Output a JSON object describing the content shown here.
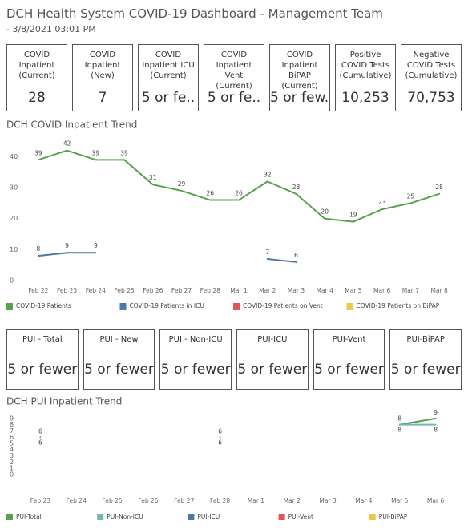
{
  "header": {
    "title": "DCH Health System COVID-19 Dashboard - Management Team",
    "subtitle": "- 3/8/2021 03:01 PM"
  },
  "kpis": [
    {
      "title": "COVID Inpatient (Current)",
      "value": "28"
    },
    {
      "title": "COVID Inpatient (New)",
      "value": "7"
    },
    {
      "title": "COVID Inpatient ICU (Current)",
      "value": "5 or fe.."
    },
    {
      "title": "COVID Inpatient Vent (Current)",
      "value": "5 or fe.."
    },
    {
      "title": "COVID Inpatient BiPAP (Current)",
      "value": "5 or few.."
    },
    {
      "title": "Positive COVID Tests (Cumulative)",
      "value": "10,253"
    },
    {
      "title": "Negative COVID Tests (Cumulative)",
      "value": "70,753"
    }
  ],
  "pui_kpis": [
    {
      "title": "PUI - Total",
      "value": "5 or fewer"
    },
    {
      "title": "PUI - New",
      "value": "5 or fewer"
    },
    {
      "title": "PUI - Non-ICU",
      "value": "5 or fewer"
    },
    {
      "title": "PUI-ICU",
      "value": "5 or fewer"
    },
    {
      "title": "PUI-Vent",
      "value": "5 or fewer"
    },
    {
      "title": "PUI-BiPAP",
      "value": "5 or fewer"
    }
  ],
  "chart_data": [
    {
      "type": "line",
      "title": "DCH COVID Inpatient Trend",
      "categories": [
        "Feb 22",
        "Feb 23",
        "Feb 24",
        "Feb 25",
        "Feb 26",
        "Feb 27",
        "Feb 28",
        "Mar 1",
        "Mar 2",
        "Mar 3",
        "Mar 4",
        "Mar 5",
        "Mar 6",
        "Mar 7",
        "Mar 8"
      ],
      "series": [
        {
          "name": "COVID-19 Patients",
          "color": "#59a14f",
          "values": [
            39,
            42,
            39,
            39,
            31,
            29,
            26,
            26,
            32,
            28,
            20,
            19,
            23,
            25,
            28
          ]
        },
        {
          "name": "COVID-19 Patients in ICU",
          "color": "#4e79a7",
          "values": [
            8,
            9,
            9,
            null,
            null,
            null,
            null,
            null,
            7,
            6,
            null,
            null,
            null,
            null,
            null
          ]
        },
        {
          "name": "COVID-19 Patients on Vent",
          "color": "#e15759",
          "values": [
            null,
            null,
            null,
            null,
            null,
            null,
            null,
            null,
            null,
            null,
            null,
            null,
            null,
            null,
            null
          ]
        },
        {
          "name": "COVID-19 Patients on BiPAP",
          "color": "#edc948",
          "values": [
            null,
            null,
            null,
            null,
            null,
            null,
            null,
            null,
            null,
            null,
            null,
            null,
            null,
            null,
            null
          ]
        }
      ],
      "ylim": [
        0,
        44
      ],
      "yticks": [
        0,
        10,
        20,
        30,
        40
      ]
    },
    {
      "type": "line",
      "title": "DCH PUI Inpatient Trend",
      "categories": [
        "Feb 23",
        "Feb 24",
        "Feb 25",
        "Feb 26",
        "Feb 27",
        "Feb 28",
        "Mar 1",
        "Mar 2",
        "Mar 3",
        "Mar 4",
        "Mar 5",
        "Mar 6"
      ],
      "series": [
        {
          "name": "PUI-Total",
          "color": "#59a14f",
          "values": [
            6,
            null,
            null,
            null,
            null,
            6,
            null,
            null,
            null,
            null,
            8,
            9
          ]
        },
        {
          "name": "PUI-Non-ICU",
          "color": "#76b7b2",
          "values": [
            6,
            null,
            null,
            null,
            null,
            6,
            null,
            null,
            null,
            null,
            8,
            8
          ]
        },
        {
          "name": "PUI-ICU",
          "color": "#4e79a7",
          "values": [
            null,
            null,
            null,
            null,
            null,
            null,
            null,
            null,
            null,
            null,
            null,
            null
          ]
        },
        {
          "name": "PUI-Vent",
          "color": "#e15759",
          "values": [
            null,
            null,
            null,
            null,
            null,
            null,
            null,
            null,
            null,
            null,
            null,
            null
          ]
        },
        {
          "name": "PUI-BiPAP",
          "color": "#edc948",
          "values": [
            null,
            null,
            null,
            null,
            null,
            null,
            null,
            null,
            null,
            null,
            null,
            null
          ]
        }
      ],
      "ylim": [
        0,
        9.5
      ],
      "yticks": [
        0,
        1,
        2,
        3,
        4,
        5,
        6,
        7,
        8,
        9
      ]
    }
  ]
}
